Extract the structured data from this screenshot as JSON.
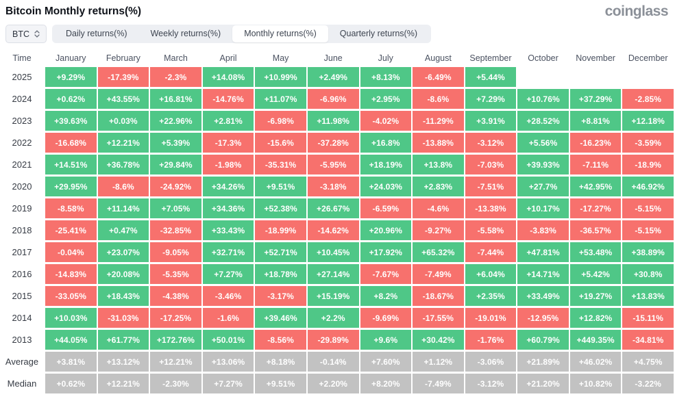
{
  "header": {
    "title": "Bitcoin Monthly returns(%)",
    "logo": "coinglass"
  },
  "controls": {
    "symbol": "BTC",
    "tabs": [
      {
        "label": "Daily returns(%)",
        "active": false
      },
      {
        "label": "Weekly returns(%)",
        "active": false
      },
      {
        "label": "Monthly returns(%)",
        "active": true
      },
      {
        "label": "Quarterly returns(%)",
        "active": false
      }
    ]
  },
  "colors": {
    "positive": "#4fc787",
    "negative": "#f7716d",
    "summary": "#c2c2c2"
  },
  "table": {
    "columns": [
      "Time",
      "January",
      "February",
      "March",
      "April",
      "May",
      "June",
      "July",
      "August",
      "September",
      "October",
      "November",
      "December"
    ],
    "rows": [
      {
        "label": "2025",
        "summary": false,
        "values": [
          "+9.29%",
          "-17.39%",
          "-2.3%",
          "+14.08%",
          "+10.99%",
          "+2.49%",
          "+8.13%",
          "-6.49%",
          "+5.44%",
          "",
          "",
          ""
        ]
      },
      {
        "label": "2024",
        "summary": false,
        "values": [
          "+0.62%",
          "+43.55%",
          "+16.81%",
          "-14.76%",
          "+11.07%",
          "-6.96%",
          "+2.95%",
          "-8.6%",
          "+7.29%",
          "+10.76%",
          "+37.29%",
          "-2.85%"
        ]
      },
      {
        "label": "2023",
        "summary": false,
        "values": [
          "+39.63%",
          "+0.03%",
          "+22.96%",
          "+2.81%",
          "-6.98%",
          "+11.98%",
          "-4.02%",
          "-11.29%",
          "+3.91%",
          "+28.52%",
          "+8.81%",
          "+12.18%"
        ]
      },
      {
        "label": "2022",
        "summary": false,
        "values": [
          "-16.68%",
          "+12.21%",
          "+5.39%",
          "-17.3%",
          "-15.6%",
          "-37.28%",
          "+16.8%",
          "-13.88%",
          "-3.12%",
          "+5.56%",
          "-16.23%",
          "-3.59%"
        ]
      },
      {
        "label": "2021",
        "summary": false,
        "values": [
          "+14.51%",
          "+36.78%",
          "+29.84%",
          "-1.98%",
          "-35.31%",
          "-5.95%",
          "+18.19%",
          "+13.8%",
          "-7.03%",
          "+39.93%",
          "-7.11%",
          "-18.9%"
        ]
      },
      {
        "label": "2020",
        "summary": false,
        "values": [
          "+29.95%",
          "-8.6%",
          "-24.92%",
          "+34.26%",
          "+9.51%",
          "-3.18%",
          "+24.03%",
          "+2.83%",
          "-7.51%",
          "+27.7%",
          "+42.95%",
          "+46.92%"
        ]
      },
      {
        "label": "2019",
        "summary": false,
        "values": [
          "-8.58%",
          "+11.14%",
          "+7.05%",
          "+34.36%",
          "+52.38%",
          "+26.67%",
          "-6.59%",
          "-4.6%",
          "-13.38%",
          "+10.17%",
          "-17.27%",
          "-5.15%"
        ]
      },
      {
        "label": "2018",
        "summary": false,
        "values": [
          "-25.41%",
          "+0.47%",
          "-32.85%",
          "+33.43%",
          "-18.99%",
          "-14.62%",
          "+20.96%",
          "-9.27%",
          "-5.58%",
          "-3.83%",
          "-36.57%",
          "-5.15%"
        ]
      },
      {
        "label": "2017",
        "summary": false,
        "values": [
          "-0.04%",
          "+23.07%",
          "-9.05%",
          "+32.71%",
          "+52.71%",
          "+10.45%",
          "+17.92%",
          "+65.32%",
          "-7.44%",
          "+47.81%",
          "+53.48%",
          "+38.89%"
        ]
      },
      {
        "label": "2016",
        "summary": false,
        "values": [
          "-14.83%",
          "+20.08%",
          "-5.35%",
          "+7.27%",
          "+18.78%",
          "+27.14%",
          "-7.67%",
          "-7.49%",
          "+6.04%",
          "+14.71%",
          "+5.42%",
          "+30.8%"
        ]
      },
      {
        "label": "2015",
        "summary": false,
        "values": [
          "-33.05%",
          "+18.43%",
          "-4.38%",
          "-3.46%",
          "-3.17%",
          "+15.19%",
          "+8.2%",
          "-18.67%",
          "+2.35%",
          "+33.49%",
          "+19.27%",
          "+13.83%"
        ]
      },
      {
        "label": "2014",
        "summary": false,
        "values": [
          "+10.03%",
          "-31.03%",
          "-17.25%",
          "-1.6%",
          "+39.46%",
          "+2.2%",
          "-9.69%",
          "-17.55%",
          "-19.01%",
          "-12.95%",
          "+12.82%",
          "-15.11%"
        ]
      },
      {
        "label": "2013",
        "summary": false,
        "values": [
          "+44.05%",
          "+61.77%",
          "+172.76%",
          "+50.01%",
          "-8.56%",
          "-29.89%",
          "+9.6%",
          "+30.42%",
          "-1.76%",
          "+60.79%",
          "+449.35%",
          "-34.81%"
        ]
      },
      {
        "label": "Average",
        "summary": true,
        "values": [
          "+3.81%",
          "+13.12%",
          "+12.21%",
          "+13.06%",
          "+8.18%",
          "-0.14%",
          "+7.60%",
          "+1.12%",
          "-3.06%",
          "+21.89%",
          "+46.02%",
          "+4.75%"
        ]
      },
      {
        "label": "Median",
        "summary": true,
        "values": [
          "+0.62%",
          "+12.21%",
          "-2.30%",
          "+7.27%",
          "+9.51%",
          "+2.20%",
          "+8.20%",
          "-7.49%",
          "-3.12%",
          "+21.20%",
          "+10.82%",
          "-3.22%"
        ]
      }
    ]
  }
}
